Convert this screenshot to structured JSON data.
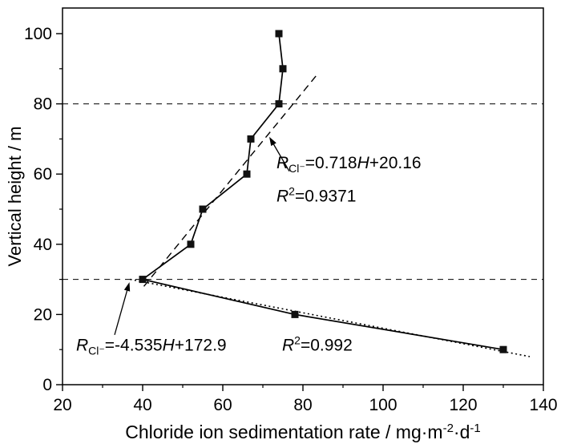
{
  "figure": {
    "background": "#ffffff",
    "foreground": "#000000"
  },
  "chart_data": {
    "type": "line",
    "title": "",
    "xlabel_parts": [
      {
        "text": "Chloride ion sedimentation rate / mg·m"
      },
      {
        "text": "-2",
        "sup": true
      },
      {
        "text": "·d"
      },
      {
        "text": "-1",
        "sup": true
      }
    ],
    "ylabel": "Vertical height / m",
    "xlim": [
      20,
      140
    ],
    "ylim": [
      0,
      107.3
    ],
    "xticks": [
      20,
      40,
      60,
      80,
      100,
      120,
      140
    ],
    "yticks": [
      0,
      20,
      40,
      60,
      80,
      100
    ],
    "x_minor_step": 10,
    "y_minor_step": 10,
    "grid": false,
    "legend": false,
    "line_color": "#000000",
    "marker": "filled-square",
    "marker_color": "#111111",
    "series": [
      {
        "name": "chloride-sedimentation-profile",
        "points": [
          [
            74,
            100
          ],
          [
            75,
            90
          ],
          [
            74,
            80
          ],
          [
            67,
            70
          ],
          [
            66,
            60
          ],
          [
            55,
            50
          ],
          [
            52,
            40
          ],
          [
            40,
            30
          ],
          [
            78,
            20
          ],
          [
            130,
            10
          ]
        ]
      }
    ],
    "reference_lines": [
      {
        "name": "height-80m-reference-line",
        "y": 80,
        "style": "dashed"
      },
      {
        "name": "height-30m-reference-line",
        "y": 30,
        "style": "dashed"
      }
    ],
    "fit_lines": [
      {
        "name": "upper-fit-line",
        "style": "dashed",
        "x1": 40.3,
        "y1": 28,
        "x2": 83.3,
        "y2": 88
      },
      {
        "name": "lower-fit-line",
        "style": "dotted",
        "x1": 36.9,
        "y1": 30,
        "x2": 136.6,
        "y2": 8
      }
    ],
    "annotations": [
      {
        "name": "upper-fit-equation",
        "x": 73.4,
        "y": 61.6,
        "segments": [
          {
            "text": "R",
            "italic": true
          },
          {
            "text": "Cl⁻",
            "sub": true
          },
          {
            "text": "=0.718"
          },
          {
            "text": "H",
            "italic": true
          },
          {
            "text": "+20.16"
          }
        ]
      },
      {
        "name": "upper-fit-r2",
        "x": 73.4,
        "y": 52.2,
        "segments": [
          {
            "text": "R",
            "italic": true
          },
          {
            "text": "2",
            "sup": true
          },
          {
            "text": "=0.9371"
          }
        ]
      },
      {
        "name": "lower-fit-equation",
        "x": 23.4,
        "y": 9.7,
        "segments": [
          {
            "text": "R",
            "italic": true
          },
          {
            "text": "Cl⁻",
            "sub": true
          },
          {
            "text": "=-4.535"
          },
          {
            "text": "H",
            "italic": true
          },
          {
            "text": "+172.9"
          }
        ]
      },
      {
        "name": "lower-fit-r2",
        "x": 74.8,
        "y": 9.7,
        "segments": [
          {
            "text": "R",
            "italic": true
          },
          {
            "text": "2",
            "sup": true
          },
          {
            "text": "=0.992"
          }
        ]
      }
    ],
    "arrows": [
      {
        "name": "upper-fit-arrow",
        "from": [
          76.6,
          60.8
        ],
        "to": [
          71.6,
          70.6
        ]
      },
      {
        "name": "lower-fit-arrow",
        "from": [
          33.0,
          14.2
        ],
        "to": [
          36.7,
          29.2
        ]
      }
    ]
  }
}
